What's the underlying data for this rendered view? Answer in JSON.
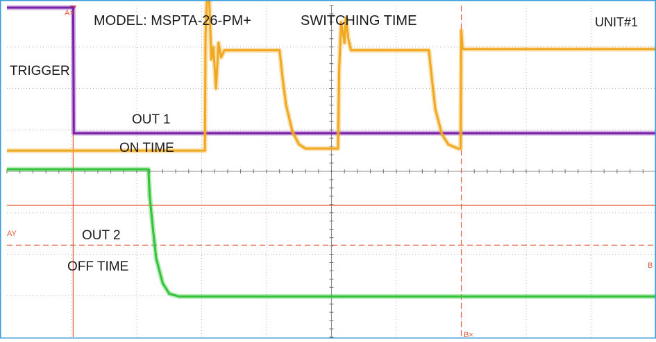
{
  "chart_data": {
    "type": "line",
    "title": "SWITCHING TIME",
    "header": {
      "model": "MODEL: MSPTA-26-PM+",
      "title": "SWITCHING TIME",
      "unit": "UNIT#1"
    },
    "grid": true,
    "xlim": [
      0,
      10
    ],
    "ylim": [
      0,
      8
    ],
    "annotations": {
      "trigger": "TRIGGER",
      "out1_line1": "OUT 1",
      "out1_line2": "ON TIME",
      "out2_line1": "OUT 2",
      "out2_line2": "OFF TIME"
    },
    "cursor_labels": {
      "ax": "A×",
      "ay": "AY",
      "bx": "B×",
      "by": "B"
    },
    "cursors": {
      "ax": 1.02,
      "bx": 7.0,
      "ay": 3.18,
      "by": 2.22
    },
    "series": [
      {
        "color": "#7a1fa8",
        "x": [
          0.0,
          1.02,
          1.03,
          10.0
        ],
        "y": [
          7.95,
          7.95,
          4.92,
          4.92
        ]
      },
      {
        "color": "#f0a820",
        "x": [
          0.0,
          3.05,
          3.06,
          3.1,
          3.15,
          3.18,
          3.22,
          3.26,
          3.3,
          3.35,
          4.2,
          4.25,
          4.3,
          4.4,
          4.5,
          4.6,
          5.1,
          5.12,
          5.15,
          5.2,
          5.22,
          5.26,
          5.3,
          6.5,
          6.55,
          6.6,
          6.7,
          6.8,
          6.95,
          6.99,
          7.0,
          7.02,
          10.0
        ],
        "y": [
          4.5,
          4.5,
          7.3,
          8.85,
          6.7,
          7.0,
          6.0,
          7.1,
          6.75,
          6.92,
          6.92,
          6.2,
          5.6,
          4.95,
          4.65,
          4.55,
          4.55,
          6.5,
          7.6,
          7.1,
          7.7,
          7.2,
          6.92,
          6.92,
          6.2,
          5.5,
          4.9,
          4.65,
          4.55,
          4.55,
          7.4,
          6.95,
          6.95
        ]
      },
      {
        "color": "#33c43a",
        "x": [
          0.0,
          2.18,
          2.2,
          2.25,
          2.3,
          2.4,
          2.5,
          2.65,
          10.0
        ],
        "y": [
          4.05,
          4.05,
          3.4,
          2.6,
          1.9,
          1.3,
          1.05,
          0.98,
          0.98
        ]
      }
    ]
  }
}
